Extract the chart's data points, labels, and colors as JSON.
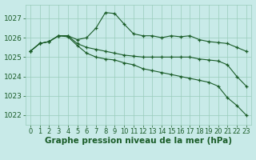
{
  "background_color": "#c8eae8",
  "grid_color": "#99ccbb",
  "line_color": "#1a5c28",
  "xlabel": "Graphe pression niveau de la mer (hPa)",
  "xlabel_fontsize": 7.5,
  "ylabel_fontsize": 6.5,
  "tick_fontsize": 6.0,
  "ylim": [
    1021.5,
    1027.7
  ],
  "xlim": [
    -0.5,
    23.5
  ],
  "yticks": [
    1022,
    1023,
    1024,
    1025,
    1026,
    1027
  ],
  "xticks": [
    0,
    1,
    2,
    3,
    4,
    5,
    6,
    7,
    8,
    9,
    10,
    11,
    12,
    13,
    14,
    15,
    16,
    17,
    18,
    19,
    20,
    21,
    22,
    23
  ],
  "series": [
    [
      1025.3,
      1025.7,
      1025.8,
      1026.1,
      1026.1,
      1025.9,
      1026.0,
      1026.5,
      1027.3,
      1027.25,
      1026.7,
      1026.2,
      1026.1,
      1026.1,
      1026.0,
      1026.1,
      1026.05,
      1026.1,
      1025.9,
      1025.8,
      1025.75,
      1025.7,
      1025.5,
      1025.3
    ],
    [
      1025.3,
      1025.7,
      1025.8,
      1026.1,
      1026.1,
      1025.7,
      1025.5,
      1025.4,
      1025.3,
      1025.2,
      1025.1,
      1025.05,
      1025.0,
      1025.0,
      1025.0,
      1025.0,
      1025.0,
      1025.0,
      1024.9,
      1024.85,
      1024.8,
      1024.6,
      1024.0,
      1023.5
    ],
    [
      1025.3,
      1025.7,
      1025.8,
      1026.1,
      1026.05,
      1025.6,
      1025.2,
      1025.0,
      1024.9,
      1024.85,
      1024.7,
      1024.6,
      1024.4,
      1024.3,
      1024.2,
      1024.1,
      1024.0,
      1023.9,
      1023.8,
      1023.7,
      1023.5,
      1022.9,
      1022.5,
      1022.0
    ]
  ]
}
